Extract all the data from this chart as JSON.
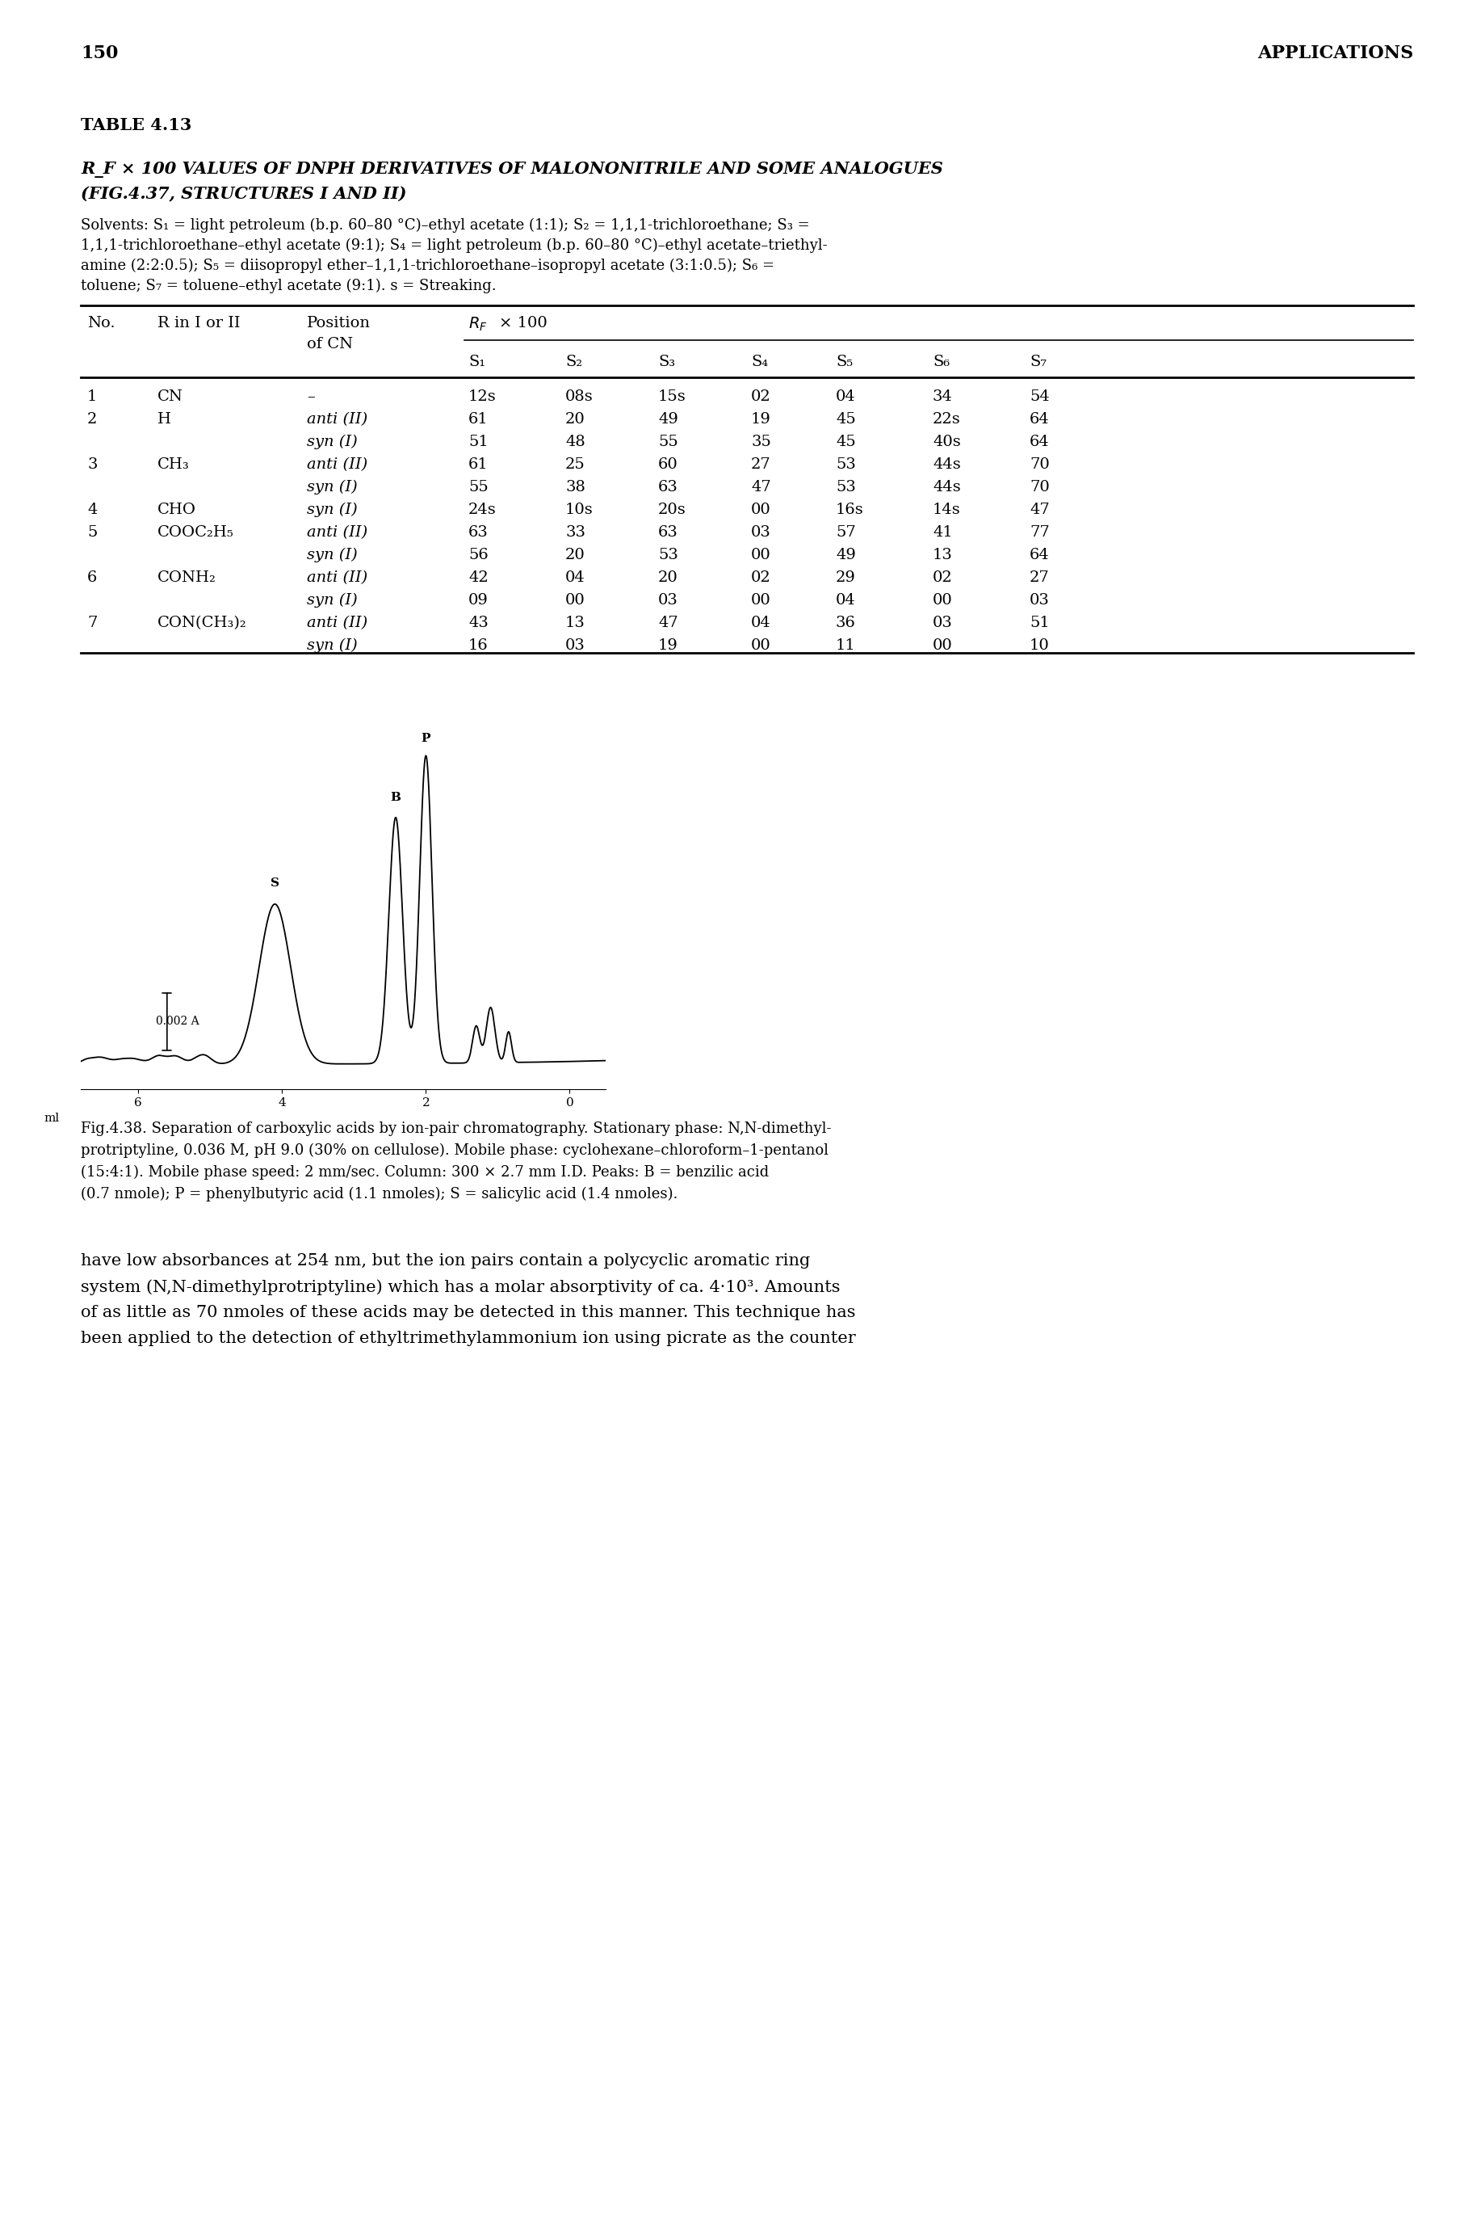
{
  "page_number": "150",
  "page_header_right": "APPLICATIONS",
  "table_label": "TABLE 4.13",
  "table_title_line1": "R_F × 100 VALUES OF DNPH DERIVATIVES OF MALONONITRILE AND SOME ANALOGUES",
  "table_title_line2": "(FIG.4.37, STRUCTURES I AND II)",
  "solvent_lines": [
    "Solvents: S₁ = light petroleum (b.p. 60–80 °C)–ethyl acetate (1:1); S₂ = 1,1,1-trichloroethane; S₃ =",
    "1,1,1-trichloroethane–ethyl acetate (9:1); S₄ = light petroleum (b.p. 60–80 °C)–ethyl acetate–triethyl-",
    "amine (2:2:0.5); S₅ = diisopropyl ether–1,1,1-trichloroethane–isopropyl acetate (3:1:0.5); S₆ =",
    "toluene; S₇ = toluene–ethyl acetate (9:1). s = Streaking."
  ],
  "table_data": [
    [
      "1",
      "CN",
      "–",
      "12s",
      "08s",
      "15s",
      "02",
      "04",
      "34",
      "54"
    ],
    [
      "2",
      "H",
      "anti (II)",
      "61",
      "20",
      "49",
      "19",
      "45",
      "22s",
      "64"
    ],
    [
      "",
      "",
      "syn (I)",
      "51",
      "48",
      "55",
      "35",
      "45",
      "40s",
      "64"
    ],
    [
      "3",
      "CH₃",
      "anti (II)",
      "61",
      "25",
      "60",
      "27",
      "53",
      "44s",
      "70"
    ],
    [
      "",
      "",
      "syn (I)",
      "55",
      "38",
      "63",
      "47",
      "53",
      "44s",
      "70"
    ],
    [
      "4",
      "CHO",
      "syn (I)",
      "24s",
      "10s",
      "20s",
      "00",
      "16s",
      "14s",
      "47"
    ],
    [
      "5",
      "COOC₂H₅",
      "anti (II)",
      "63",
      "33",
      "63",
      "03",
      "57",
      "41",
      "77"
    ],
    [
      "",
      "",
      "syn (I)",
      "56",
      "20",
      "53",
      "00",
      "49",
      "13",
      "64"
    ],
    [
      "6",
      "CONH₂",
      "anti (II)",
      "42",
      "04",
      "20",
      "02",
      "29",
      "02",
      "27"
    ],
    [
      "",
      "",
      "syn (I)",
      "09",
      "00",
      "03",
      "00",
      "04",
      "00",
      "03"
    ],
    [
      "7",
      "CON(CH₃)₂",
      "anti (II)",
      "43",
      "13",
      "47",
      "04",
      "36",
      "03",
      "51"
    ],
    [
      "",
      "",
      "syn (I)",
      "16",
      "03",
      "19",
      "00",
      "11",
      "00",
      "10"
    ]
  ],
  "fig_caption_lines": [
    "Fig.4.38. Separation of carboxylic acids by ion-pair chromatography. Stationary phase: N,N-dimethyl-",
    "protriptyline, 0.036 M, pH 9.0 (30% on cellulose). Mobile phase: cyclohexane–chloroform–1-pentanol",
    "(15:4:1). Mobile phase speed: 2 mm/sec. Column: 300 × 2.7 mm I.D. Peaks: B = benzilic acid",
    "(0.7 nmole); P = phenylbutyric acid (1.1 nmoles); S = salicylic acid (1.4 nmoles)."
  ],
  "bottom_text_lines": [
    "have low absorbances at 254 nm, but the ion pairs contain a polycyclic aromatic ring",
    "system (N,N-dimethylprotriptyline) which has a molar absorptivity of ca. 4·10³. Amounts",
    "of as little as 70 nmoles of these acids may be detected in this manner. This technique has",
    "been applied to the detection of ethyltrimethylammonium ion using picrate as the counter"
  ],
  "background_color": "#ffffff",
  "text_color": "#000000"
}
